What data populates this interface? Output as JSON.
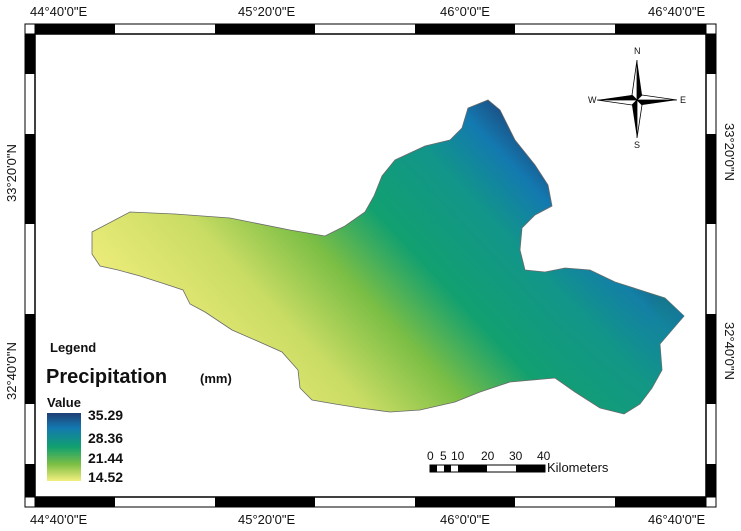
{
  "graticule": {
    "top": [
      "44°40'0\"E",
      "45°20'0\"E",
      "46°0'0\"E",
      "46°40'0\"E"
    ],
    "bottom": [
      "44°40'0\"E",
      "45°20'0\"E",
      "46°0'0\"E",
      "46°40'0\"E"
    ],
    "left": [
      "33°20'0\"N",
      "32°40'0\"N"
    ],
    "right": [
      "33°20'0\"N",
      "32°40'0\"N"
    ]
  },
  "legend": {
    "title": "Legend",
    "variable": "Precipitation",
    "unit": "(mm)",
    "value_label": "Value",
    "classes": [
      "35.29",
      "28.36",
      "21.44",
      "14.52"
    ]
  },
  "colors": {
    "high": "#1f3f73",
    "mid_high": "#1379b0",
    "mid": "#12a070",
    "mid_low": "#7bbe45",
    "low": "#f3ef7e"
  },
  "scale_bar": {
    "ticks": [
      "0",
      "5",
      "10",
      "20",
      "30",
      "40"
    ],
    "unit": "Kilometers"
  },
  "north_arrow": {
    "n": "N",
    "s": "S",
    "e": "E",
    "w": "W"
  }
}
